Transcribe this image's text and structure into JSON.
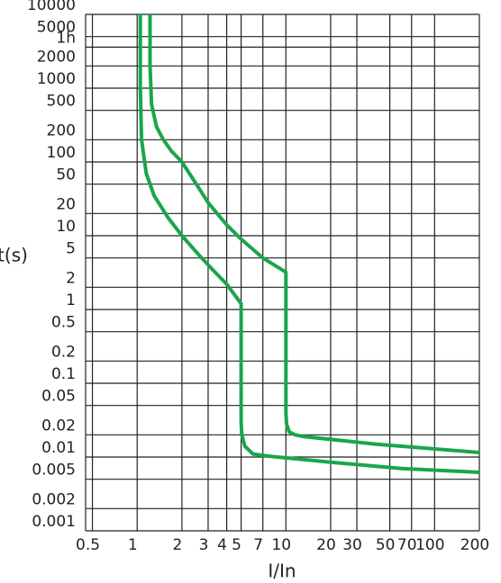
{
  "chart_data": {
    "type": "line",
    "x_label": "I/In",
    "y_label": "t(s)",
    "xscale": "log",
    "yscale": "log",
    "grid": true,
    "xlim": [
      0.45,
      200
    ],
    "ylim": [
      0.001,
      10000
    ],
    "xticks": [
      0.5,
      1,
      2,
      3,
      4,
      5,
      7,
      10,
      20,
      30,
      50,
      70,
      100,
      200
    ],
    "yticks": [
      0.001,
      0.002,
      0.005,
      0.01,
      0.02,
      0.05,
      0.1,
      0.2,
      0.5,
      1,
      2,
      5,
      10,
      20,
      50,
      100,
      200,
      500,
      1000,
      2000,
      {
        "value": 3600,
        "label": "1h"
      },
      5000,
      10000
    ],
    "series": [
      {
        "color": "#1aa64a",
        "x": [
          1.05,
          1.05,
          1.07,
          1.15,
          1.3,
          1.6,
          2,
          2.6,
          3.2,
          4,
          5,
          5,
          5.05,
          5.3,
          6,
          7.5,
          20,
          60,
          200
        ],
        "values": [
          10000,
          1000,
          200,
          70,
          35,
          18,
          10,
          5.5,
          3.5,
          2.2,
          1.2,
          0.03,
          0.02,
          0.014,
          0.011,
          0.0103,
          0.0085,
          0.007,
          0.0062
        ]
      },
      {
        "color": "#1aa64a",
        "x": [
          1.22,
          1.22,
          1.25,
          1.35,
          1.5,
          1.7,
          2,
          2.5,
          3,
          4,
          5,
          7,
          10,
          10,
          10.1,
          10.5,
          11.5,
          13,
          40,
          200
        ],
        "values": [
          10000,
          2000,
          600,
          300,
          200,
          140,
          100,
          50,
          28,
          14,
          9,
          5,
          3.2,
          0.04,
          0.028,
          0.022,
          0.02,
          0.019,
          0.015,
          0.0115
        ]
      }
    ]
  }
}
